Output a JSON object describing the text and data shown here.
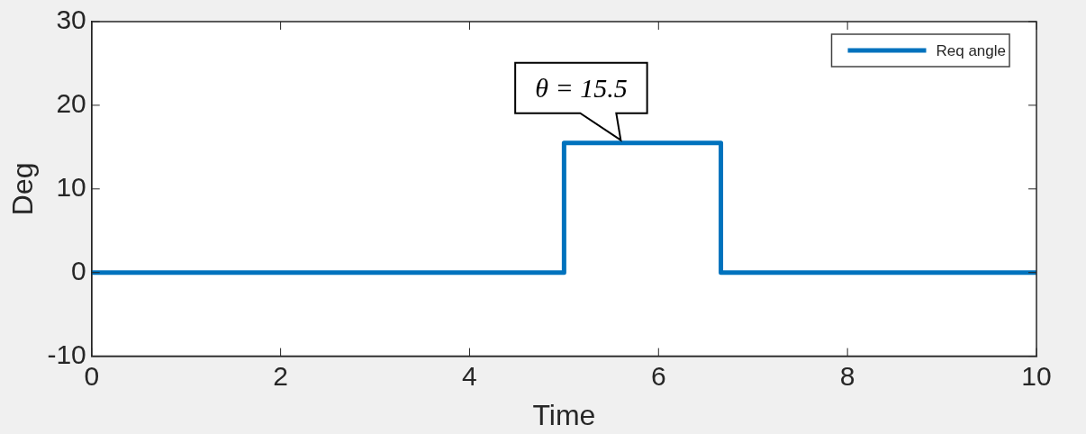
{
  "chart_data": {
    "type": "line",
    "xlabel": "Time",
    "ylabel": "Deg",
    "series": [
      {
        "name": "Req angle",
        "color": "#0072bd",
        "x": [
          0,
          5,
          5,
          6.66,
          6.66,
          10
        ],
        "values": [
          0,
          0,
          15.5,
          15.5,
          0,
          0
        ]
      }
    ],
    "xlim": [
      0,
      10
    ],
    "xticks": [
      0,
      2,
      4,
      6,
      8,
      10
    ],
    "ylim": [
      -10,
      30
    ],
    "yticks": [
      -10,
      0,
      10,
      20,
      30
    ],
    "grid": false,
    "legend": "top right",
    "marker": "none",
    "line_style": "solid",
    "annotations": [
      {
        "text": "θ = 15.5",
        "x": 5.6,
        "y": 15.5
      }
    ]
  }
}
